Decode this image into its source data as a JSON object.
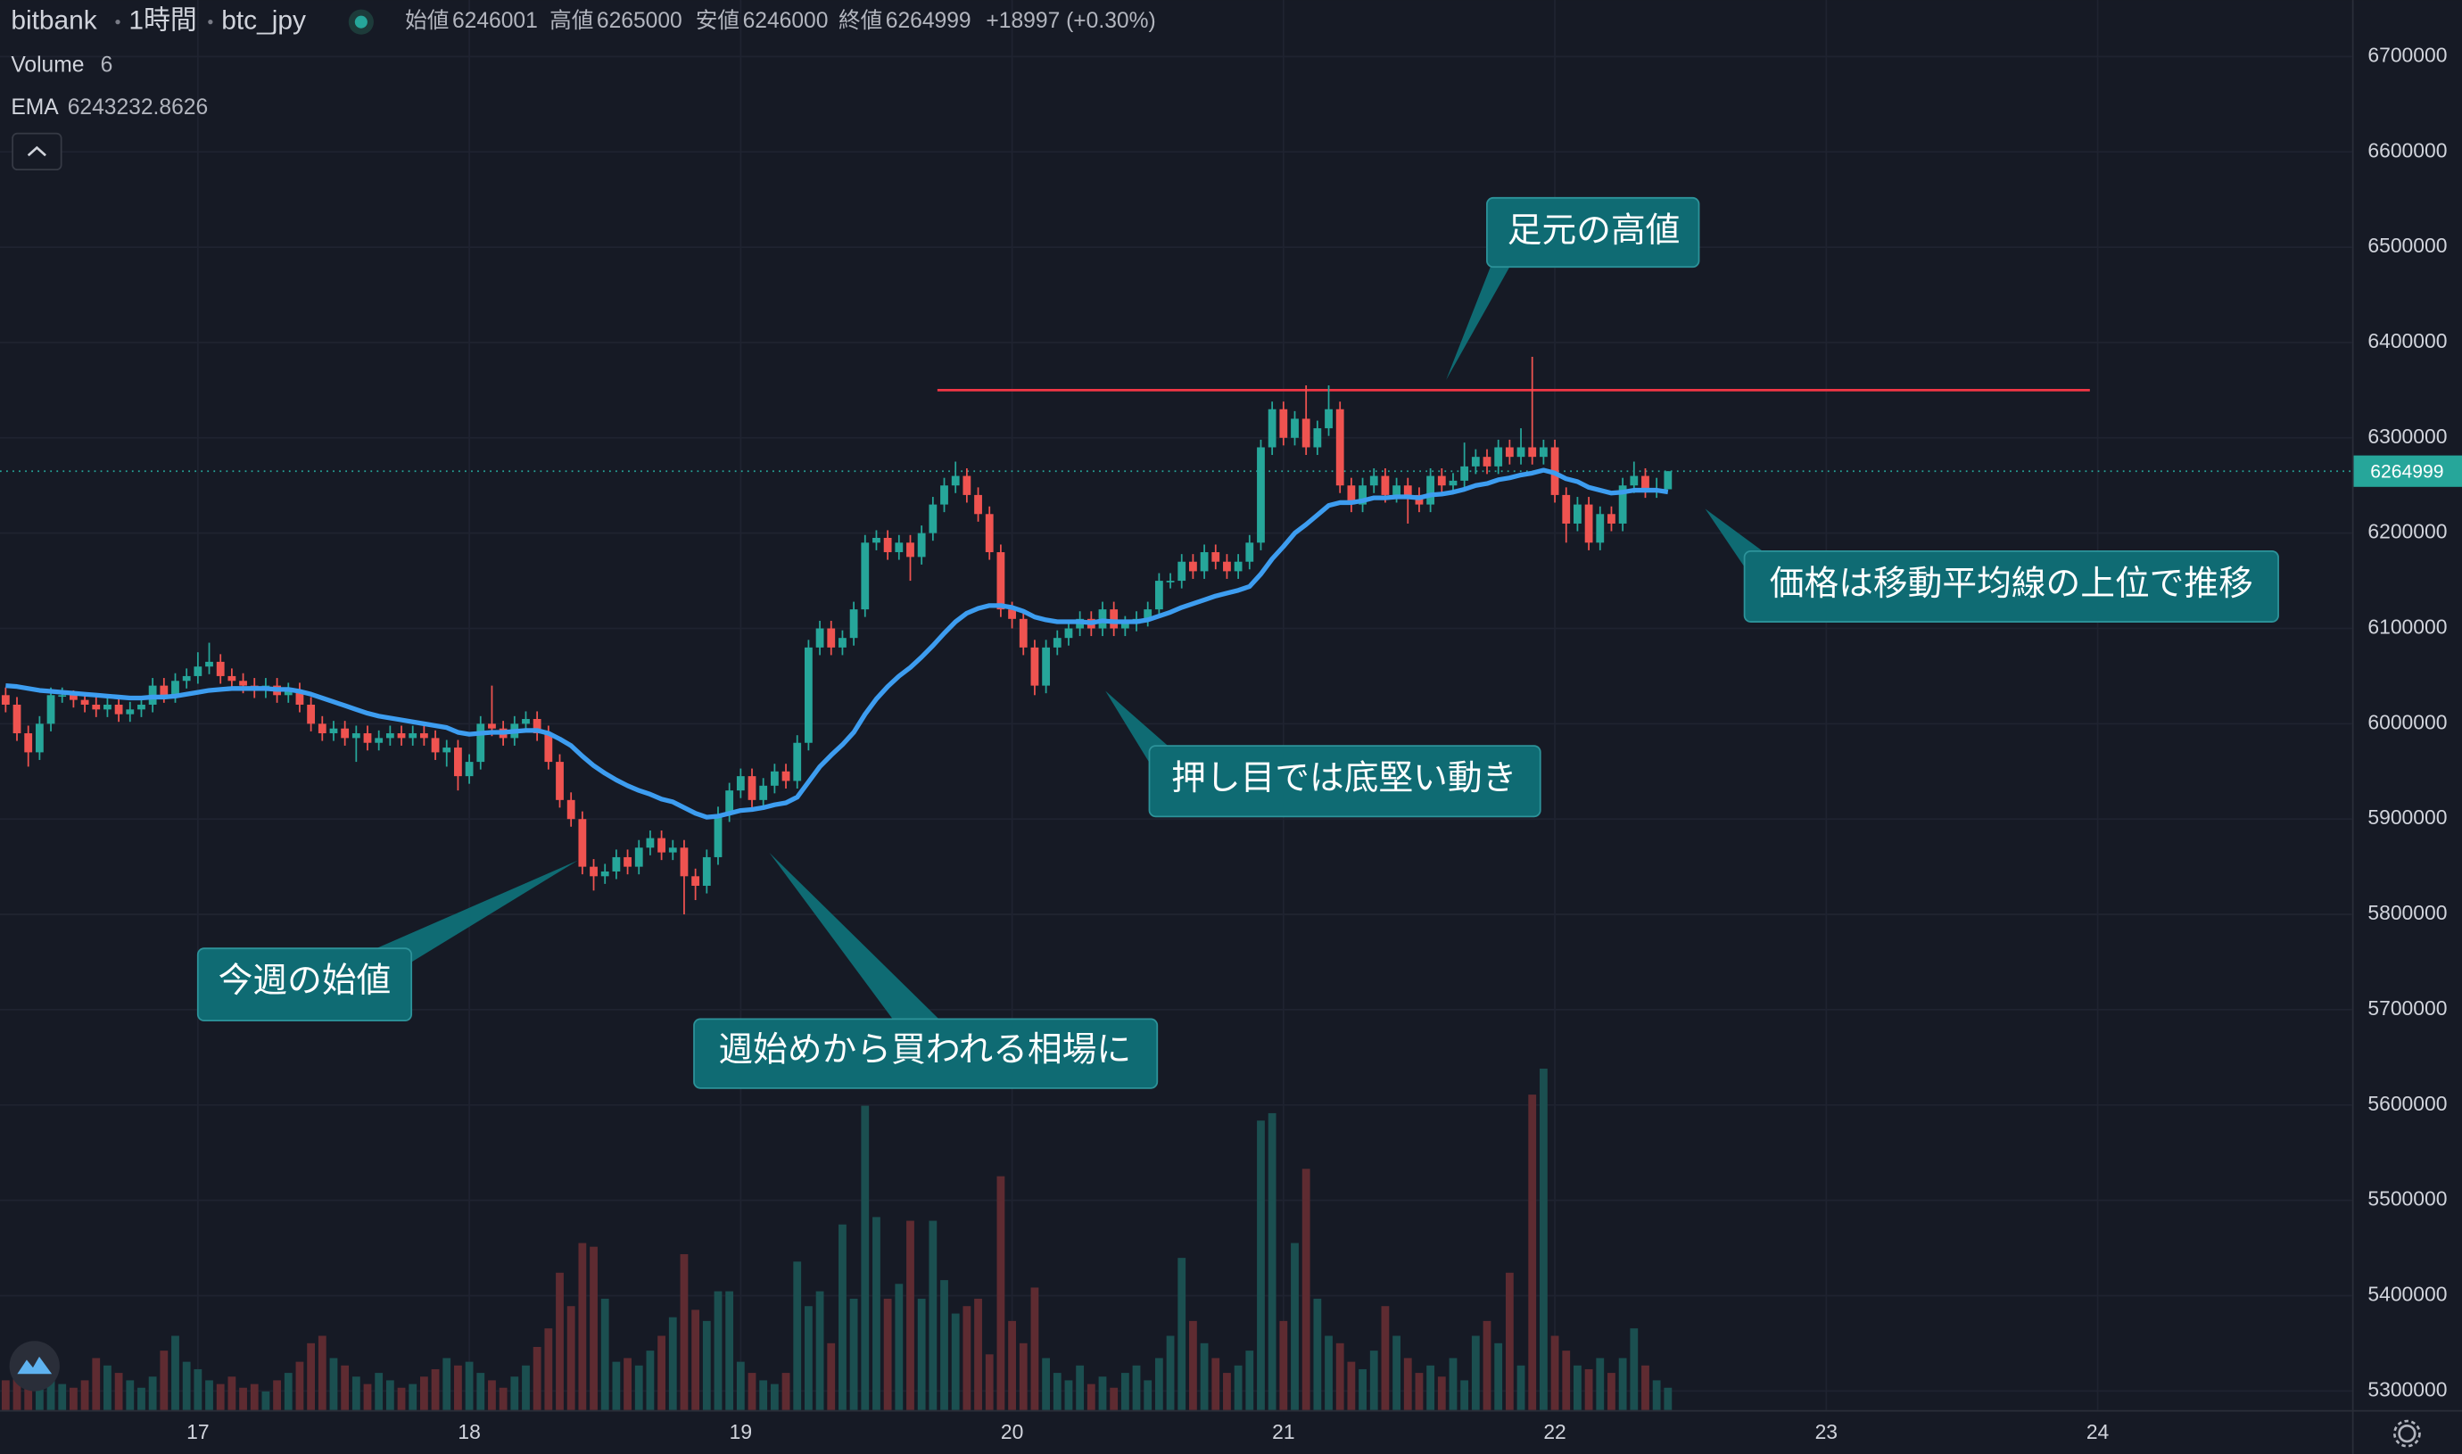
{
  "chart_data": {
    "type": "candlestick",
    "exchange": "bitbank",
    "interval": "1時間",
    "symbol": "btc_jpy",
    "ohlc_labels": [
      "始値",
      "高値",
      "安値",
      "終値"
    ],
    "change_label": "+18997 (+0.30%)",
    "volume_label": "Volume",
    "ema_label": "EMA",
    "grid": true,
    "up_color": "#26a69a",
    "down_color": "#ef5350",
    "volume_up_color": "#1b4f50",
    "volume_down_color": "#5e2b31",
    "ema_color": "#3d9df0",
    "resistance": {
      "value": 6350000,
      "color": "#f23645"
    },
    "xlim": [
      -0.5,
      207.5
    ],
    "xticks": [
      {
        "value": 17,
        "label": "17"
      },
      {
        "value": 41,
        "label": "18"
      },
      {
        "value": 65,
        "label": "19"
      },
      {
        "value": 89,
        "label": "20"
      },
      {
        "value": 113,
        "label": "21"
      },
      {
        "value": 137,
        "label": "22"
      },
      {
        "value": 161,
        "label": "23"
      },
      {
        "value": 185,
        "label": "24"
      }
    ],
    "ylim": [
      5280000,
      6759300
    ],
    "yticks": [
      5300000,
      5400000,
      5500000,
      5600000,
      5700000,
      5800000,
      5900000,
      6000000,
      6100000,
      6200000,
      6300000,
      6400000,
      6500000,
      6600000,
      6700000
    ],
    "y2lim": [
      0,
      380
    ],
    "open": [
      6030000,
      6020000,
      5990000,
      5970000,
      6000000,
      6030000,
      6030000,
      6025000,
      6020000,
      6015000,
      6020000,
      6010000,
      6015000,
      6020000,
      6040000,
      6030000,
      6045000,
      6050000,
      6060000,
      6065000,
      6050000,
      6045000,
      6040000,
      6035000,
      6040000,
      6030000,
      6035000,
      6020000,
      6000000,
      5990000,
      5995000,
      5985000,
      5990000,
      5980000,
      5985000,
      5990000,
      5985000,
      5990000,
      5985000,
      5970000,
      5975000,
      5945000,
      5960000,
      6000000,
      5995000,
      5985000,
      6000000,
      6005000,
      5990000,
      5960000,
      5920000,
      5900000,
      5850000,
      5840000,
      5845000,
      5860000,
      5850000,
      5870000,
      5880000,
      5865000,
      5870000,
      5840000,
      5830000,
      5860000,
      5905000,
      5930000,
      5945000,
      5920000,
      5935000,
      5950000,
      5940000,
      5980000,
      6080000,
      6100000,
      6080000,
      6090000,
      6120000,
      6190000,
      6195000,
      6180000,
      6190000,
      6175000,
      6200000,
      6230000,
      6250000,
      6260000,
      6240000,
      6220000,
      6180000,
      6120000,
      6110000,
      6080000,
      6040000,
      6080000,
      6090000,
      6100000,
      6110000,
      6100000,
      6120000,
      6100000,
      6105000,
      6110000,
      6120000,
      6150000,
      6150000,
      6170000,
      6160000,
      6180000,
      6170000,
      6160000,
      6170000,
      6190000,
      6290000,
      6330000,
      6300000,
      6320000,
      6290000,
      6310000,
      6330000,
      6250000,
      6230000,
      6250000,
      6260000,
      6240000,
      6250000,
      6240000,
      6230000,
      6260000,
      6250000,
      6255000,
      6270000,
      6280000,
      6270000,
      6290000,
      6280000,
      6290000,
      6280000,
      6290000,
      6240000,
      6210000,
      6230000,
      6190000,
      6220000,
      6210000,
      6250000,
      6260000,
      6245000,
      6246001
    ],
    "high": [
      6038000,
      6028000,
      5998000,
      6008000,
      6038000,
      6038000,
      6035000,
      6030000,
      6028000,
      6028000,
      6028000,
      6023000,
      6028000,
      6048000,
      6048000,
      6053000,
      6058000,
      6075000,
      6085000,
      6073000,
      6058000,
      6053000,
      6048000,
      6048000,
      6048000,
      6043000,
      6043000,
      6028000,
      6008000,
      6003000,
      6003000,
      5998000,
      5998000,
      5993000,
      5998000,
      5998000,
      5998000,
      5998000,
      5993000,
      5983000,
      5983000,
      5968000,
      6008000,
      6040000,
      6003000,
      6008000,
      6013000,
      6013000,
      5998000,
      5968000,
      5928000,
      5908000,
      5858000,
      5853000,
      5868000,
      5868000,
      5878000,
      5888000,
      5888000,
      5878000,
      5878000,
      5848000,
      5868000,
      5913000,
      5938000,
      5953000,
      5953000,
      5943000,
      5958000,
      5958000,
      5988000,
      6088000,
      6108000,
      6108000,
      6098000,
      6128000,
      6198000,
      6203000,
      6203000,
      6198000,
      6198000,
      6208000,
      6238000,
      6258000,
      6275000,
      6268000,
      6248000,
      6228000,
      6188000,
      6128000,
      6118000,
      6088000,
      6088000,
      6098000,
      6108000,
      6118000,
      6118000,
      6128000,
      6128000,
      6113000,
      6118000,
      6128000,
      6158000,
      6158000,
      6178000,
      6178000,
      6188000,
      6188000,
      6178000,
      6178000,
      6198000,
      6298000,
      6338000,
      6338000,
      6328000,
      6355000,
      6318000,
      6355000,
      6338000,
      6258000,
      6258000,
      6268000,
      6268000,
      6258000,
      6258000,
      6248000,
      6268000,
      6268000,
      6263000,
      6295000,
      6288000,
      6288000,
      6298000,
      6298000,
      6310000,
      6385000,
      6298000,
      6298000,
      6248000,
      6238000,
      6238000,
      6228000,
      6228000,
      6258000,
      6275000,
      6268000,
      6258000,
      6265000
    ],
    "low": [
      6012000,
      5982000,
      5955000,
      5962000,
      5992000,
      6022000,
      6017000,
      6012000,
      6007000,
      6007000,
      6002000,
      6002000,
      6007000,
      6012000,
      6022000,
      6022000,
      6037000,
      6042000,
      6052000,
      6042000,
      6037000,
      6032000,
      6027000,
      6027000,
      6022000,
      6022000,
      6012000,
      5992000,
      5982000,
      5982000,
      5977000,
      5960000,
      5972000,
      5972000,
      5977000,
      5977000,
      5977000,
      5977000,
      5962000,
      5955000,
      5930000,
      5937000,
      5952000,
      5987000,
      5977000,
      5977000,
      5992000,
      5982000,
      5952000,
      5912000,
      5892000,
      5842000,
      5825000,
      5832000,
      5837000,
      5842000,
      5842000,
      5862000,
      5857000,
      5857000,
      5800000,
      5815000,
      5822000,
      5852000,
      5897000,
      5922000,
      5912000,
      5912000,
      5927000,
      5932000,
      5932000,
      5972000,
      6072000,
      6072000,
      6072000,
      6082000,
      6112000,
      6182000,
      6172000,
      6172000,
      6150000,
      6167000,
      6192000,
      6222000,
      6242000,
      6232000,
      6212000,
      6172000,
      6112000,
      6100000,
      6072000,
      6030000,
      6032000,
      6072000,
      6082000,
      6092000,
      6092000,
      6092000,
      6092000,
      6092000,
      6097000,
      6102000,
      6112000,
      6142000,
      6142000,
      6152000,
      6152000,
      6162000,
      6152000,
      6152000,
      6162000,
      6182000,
      6282000,
      6292000,
      6292000,
      6282000,
      6282000,
      6302000,
      6242000,
      6222000,
      6222000,
      6242000,
      6232000,
      6232000,
      6210000,
      6222000,
      6222000,
      6242000,
      6242000,
      6247000,
      6262000,
      6262000,
      6262000,
      6272000,
      6272000,
      6272000,
      6272000,
      6232000,
      6190000,
      6202000,
      6182000,
      6182000,
      6202000,
      6202000,
      6242000,
      6237000,
      6237000,
      6246000
    ],
    "close": [
      6020000,
      5990000,
      5970000,
      6000000,
      6030000,
      6030000,
      6025000,
      6020000,
      6015000,
      6020000,
      6010000,
      6015000,
      6020000,
      6040000,
      6030000,
      6045000,
      6050000,
      6060000,
      6065000,
      6050000,
      6045000,
      6040000,
      6035000,
      6040000,
      6030000,
      6035000,
      6020000,
      6000000,
      5990000,
      5995000,
      5985000,
      5990000,
      5980000,
      5985000,
      5990000,
      5985000,
      5990000,
      5985000,
      5970000,
      5975000,
      5945000,
      5960000,
      6000000,
      5995000,
      5985000,
      6000000,
      6005000,
      5990000,
      5960000,
      5920000,
      5900000,
      5850000,
      5840000,
      5845000,
      5860000,
      5850000,
      5870000,
      5880000,
      5865000,
      5870000,
      5840000,
      5830000,
      5860000,
      5905000,
      5930000,
      5945000,
      5920000,
      5935000,
      5950000,
      5940000,
      5980000,
      6080000,
      6100000,
      6080000,
      6090000,
      6120000,
      6190000,
      6195000,
      6180000,
      6190000,
      6175000,
      6200000,
      6230000,
      6250000,
      6260000,
      6240000,
      6220000,
      6180000,
      6120000,
      6110000,
      6080000,
      6040000,
      6080000,
      6090000,
      6100000,
      6110000,
      6100000,
      6120000,
      6100000,
      6105000,
      6110000,
      6120000,
      6150000,
      6150000,
      6170000,
      6160000,
      6180000,
      6170000,
      6160000,
      6170000,
      6190000,
      6290000,
      6330000,
      6300000,
      6320000,
      6290000,
      6310000,
      6330000,
      6250000,
      6230000,
      6250000,
      6260000,
      6240000,
      6250000,
      6240000,
      6230000,
      6260000,
      6250000,
      6255000,
      6270000,
      6280000,
      6270000,
      6290000,
      6280000,
      6290000,
      6280000,
      6290000,
      6240000,
      6210000,
      6230000,
      6190000,
      6220000,
      6210000,
      6250000,
      6260000,
      6245000,
      6246001,
      6264999
    ],
    "volume": [
      8,
      12,
      18,
      10,
      9,
      7,
      6,
      8,
      14,
      12,
      10,
      8,
      6,
      9,
      16,
      20,
      13,
      11,
      8,
      7,
      9,
      6,
      7,
      5,
      8,
      10,
      13,
      18,
      20,
      14,
      12,
      9,
      7,
      10,
      8,
      6,
      7,
      9,
      11,
      14,
      12,
      13,
      10,
      8,
      6,
      9,
      12,
      17,
      22,
      37,
      28,
      45,
      44,
      30,
      13,
      14,
      12,
      16,
      20,
      25,
      42,
      27,
      24,
      32,
      32,
      13,
      10,
      8,
      7,
      10,
      40,
      28,
      32,
      18,
      50,
      30,
      82,
      52,
      30,
      34,
      51,
      30,
      51,
      35,
      26,
      28,
      30,
      15,
      63,
      24,
      18,
      33,
      14,
      10,
      8,
      12,
      7,
      9,
      6,
      10,
      12,
      8,
      14,
      20,
      41,
      24,
      18,
      14,
      10,
      12,
      16,
      78,
      80,
      24,
      45,
      65,
      30,
      20,
      18,
      13,
      11,
      16,
      28,
      20,
      14,
      10,
      12,
      9,
      14,
      8,
      20,
      24,
      18,
      37,
      12,
      85,
      92,
      20,
      16,
      12,
      11,
      14,
      10,
      14,
      22,
      12,
      8,
      6
    ],
    "ema": [
      6040000,
      6039000,
      6037000,
      6035000,
      6034000,
      6033000,
      6032000,
      6031000,
      6030000,
      6029000,
      6028000,
      6027000,
      6027000,
      6028000,
      6028000,
      6029000,
      6031000,
      6033000,
      6035000,
      6036000,
      6037000,
      6037000,
      6037000,
      6037000,
      6036000,
      6036000,
      6034000,
      6031000,
      6027000,
      6023000,
      6019000,
      6015000,
      6011000,
      6008000,
      6006000,
      6004000,
      6002000,
      6000000,
      5998000,
      5996000,
      5991000,
      5989000,
      5990000,
      5991000,
      5991000,
      5992000,
      5993000,
      5993000,
      5990000,
      5984000,
      5977000,
      5966000,
      5956000,
      5948000,
      5941000,
      5935000,
      5930000,
      5926000,
      5921000,
      5918000,
      5912000,
      5906000,
      5902000,
      5903000,
      5906000,
      5909000,
      5910000,
      5912000,
      5915000,
      5917000,
      5923000,
      5939000,
      5955000,
      5967000,
      5978000,
      5991000,
      6010000,
      6026000,
      6039000,
      6050000,
      6059000,
      6070000,
      6082000,
      6095000,
      6107000,
      6116000,
      6121000,
      6124000,
      6124000,
      6122000,
      6118000,
      6112000,
      6109000,
      6107000,
      6107000,
      6107000,
      6106000,
      6108000,
      6107000,
      6107000,
      6107000,
      6109000,
      6113000,
      6117000,
      6122000,
      6126000,
      6130000,
      6134000,
      6137000,
      6140000,
      6144000,
      6157000,
      6173000,
      6186000,
      6200000,
      6209000,
      6219000,
      6229000,
      6232000,
      6232000,
      6234000,
      6237000,
      6237000,
      6238000,
      6238000,
      6237000,
      6240000,
      6241000,
      6243000,
      6246000,
      6250000,
      6252000,
      6256000,
      6258000,
      6261000,
      6263000,
      6266000,
      6263000,
      6257000,
      6254000,
      6248000,
      6245000,
      6242000,
      6243000,
      6245000,
      6245000,
      6245000,
      6243232.8626
    ],
    "annotations": [
      {
        "text": "足元の高値"
      },
      {
        "text": "価格は移動平均線の上位で推移"
      },
      {
        "text": "押し目では底堅い動き"
      },
      {
        "text": "今週の始値"
      },
      {
        "text": "週始めから買われる相場に"
      }
    ]
  }
}
